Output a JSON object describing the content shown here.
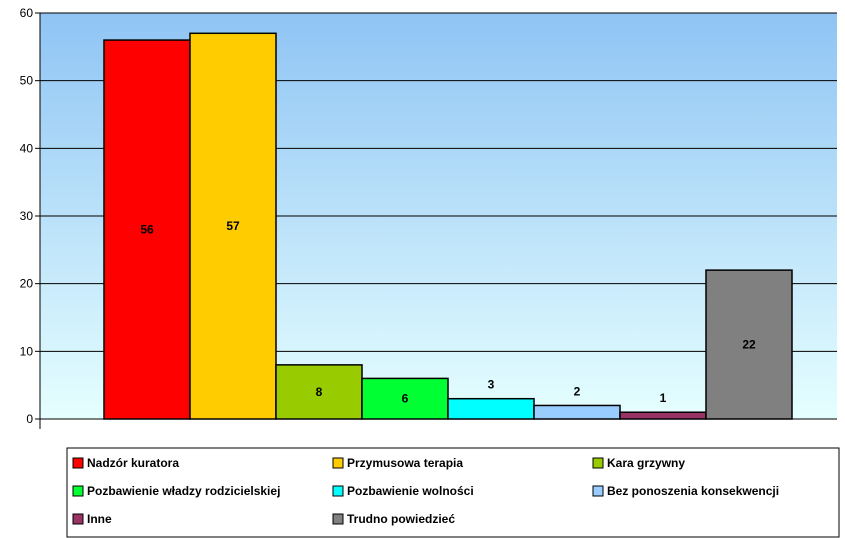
{
  "chart_data": {
    "type": "bar",
    "ylim": [
      0,
      60
    ],
    "yticks": [
      0,
      10,
      20,
      30,
      40,
      50,
      60
    ],
    "grid": true,
    "legend_position": "bottom",
    "series": [
      {
        "name": "Nadzór kuratora",
        "value": 56,
        "color": "#ff0000"
      },
      {
        "name": "Przymusowa terapia",
        "value": 57,
        "color": "#ffcc00"
      },
      {
        "name": "Kara grzywny",
        "value": 8,
        "color": "#99cc00"
      },
      {
        "name": "Pozbawienie władzy rodzicielskiej",
        "value": 6,
        "color": "#00ff33"
      },
      {
        "name": "Pozbawienie wolności",
        "value": 3,
        "color": "#00ffff"
      },
      {
        "name": "Bez ponoszenia konsekwencji",
        "value": 2,
        "color": "#99ccff"
      },
      {
        "name": "Inne",
        "value": 1,
        "color": "#993366"
      },
      {
        "name": "Trudno powiedzieć",
        "value": 22,
        "color": "#808080"
      }
    ]
  }
}
